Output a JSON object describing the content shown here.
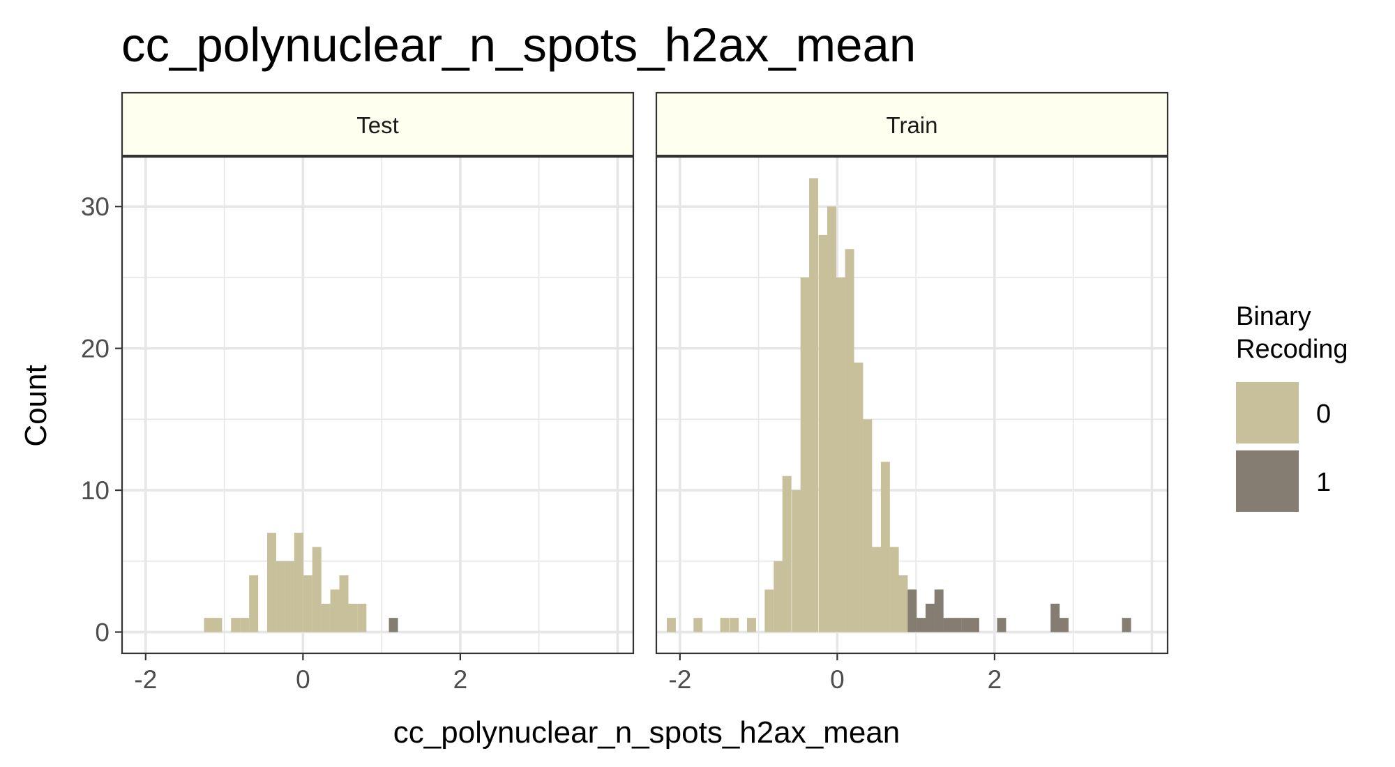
{
  "chart_data": {
    "type": "bar",
    "title": "cc_polynuclear_n_spots_h2ax_mean",
    "xlabel": "cc_polynuclear_n_spots_h2ax_mean",
    "ylabel": "Count",
    "xlim": [
      -2.3,
      4.2
    ],
    "ylim": [
      -1.5,
      33.5
    ],
    "x_ticks": [
      -2,
      0,
      2
    ],
    "y_ticks": [
      0,
      10,
      20,
      30
    ],
    "grid": true,
    "bin_width": 0.115,
    "legend": {
      "title": "Binary Recoding",
      "title_lines": [
        "Binary",
        "Recoding"
      ],
      "position": "right",
      "entries": [
        {
          "label": "0",
          "color": "#c8c09a"
        },
        {
          "label": "1",
          "color": "#857d72"
        }
      ]
    },
    "colors": {
      "0": "#c8c09a",
      "1": "#857d72",
      "strip_fill": "#fffff0",
      "grid": "#e6e6e6"
    },
    "panels": [
      {
        "name": "Test",
        "series": [
          {
            "name": "0",
            "x": [
              -1.2,
              -1.086,
              -0.857,
              -0.742,
              -0.627,
              -0.398,
              -0.283,
              -0.168,
              -0.054,
              0.061,
              0.176,
              0.29,
              0.405,
              0.52,
              0.634,
              0.749
            ],
            "values": [
              1,
              1,
              1,
              1,
              4,
              7,
              5,
              5,
              7,
              4,
              6,
              2,
              3,
              4,
              2,
              2
            ]
          },
          {
            "name": "1",
            "x": [
              1.15
            ],
            "values": [
              1
            ]
          }
        ]
      },
      {
        "name": "Train",
        "series": [
          {
            "name": "0",
            "x": [
              -2.11,
              -1.77,
              -1.43,
              -1.31,
              -1.09,
              -0.865,
              -0.75,
              -0.64,
              -0.52,
              -0.41,
              -0.3,
              -0.18,
              -0.07,
              0.044,
              0.157,
              0.271,
              0.385,
              0.498,
              0.612,
              0.725,
              0.839
            ],
            "values": [
              1,
              1,
              1,
              1,
              1,
              3,
              5,
              11,
              10,
              25,
              32,
              28,
              30,
              25,
              27,
              19,
              15,
              6,
              12,
              6,
              4
            ]
          },
          {
            "name": "1",
            "x": [
              0.953,
              1.066,
              1.18,
              1.293,
              1.407,
              1.52,
              1.634,
              1.747,
              2.089,
              2.77,
              2.883,
              3.678
            ],
            "values": [
              3,
              1,
              2,
              3,
              1,
              1,
              1,
              1,
              1,
              2,
              1,
              1
            ]
          }
        ]
      }
    ]
  }
}
